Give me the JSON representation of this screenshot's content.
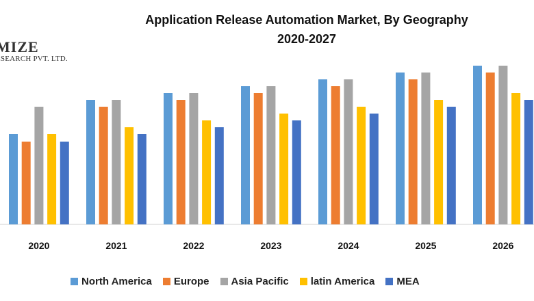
{
  "chart_data": {
    "type": "bar",
    "title_line1": "Application Release Automation Market, By Geography",
    "title_line2": "2020-2027",
    "categories": [
      "2020",
      "2021",
      "2022",
      "2023",
      "2024",
      "2025",
      "2026"
    ],
    "series": [
      {
        "name": "North America",
        "color": "#5B9BD5",
        "values": [
          13.2,
          18.2,
          19.2,
          20.2,
          21.2,
          22.2,
          23.2
        ]
      },
      {
        "name": "Europe",
        "color": "#ED7D31",
        "values": [
          12.1,
          17.2,
          18.2,
          19.2,
          20.2,
          21.2,
          22.2
        ]
      },
      {
        "name": "Asia Pacific",
        "color": "#A5A5A5",
        "values": [
          17.2,
          18.2,
          19.2,
          20.2,
          21.2,
          22.2,
          23.2
        ]
      },
      {
        "name": "latin America",
        "color": "#FFC000",
        "values": [
          13.2,
          14.2,
          15.2,
          16.2,
          17.2,
          18.2,
          19.2
        ]
      },
      {
        "name": "MEA",
        "color": "#4472C4",
        "values": [
          12.1,
          13.2,
          14.2,
          15.2,
          16.2,
          17.2,
          18.2
        ]
      }
    ],
    "ylim": [
      0,
      25
    ],
    "xlabel": "",
    "ylabel": "",
    "legend_position": "bottom"
  },
  "watermark": {
    "name": "MIZE",
    "subtitle": "ESEARCH PVT. LTD."
  }
}
